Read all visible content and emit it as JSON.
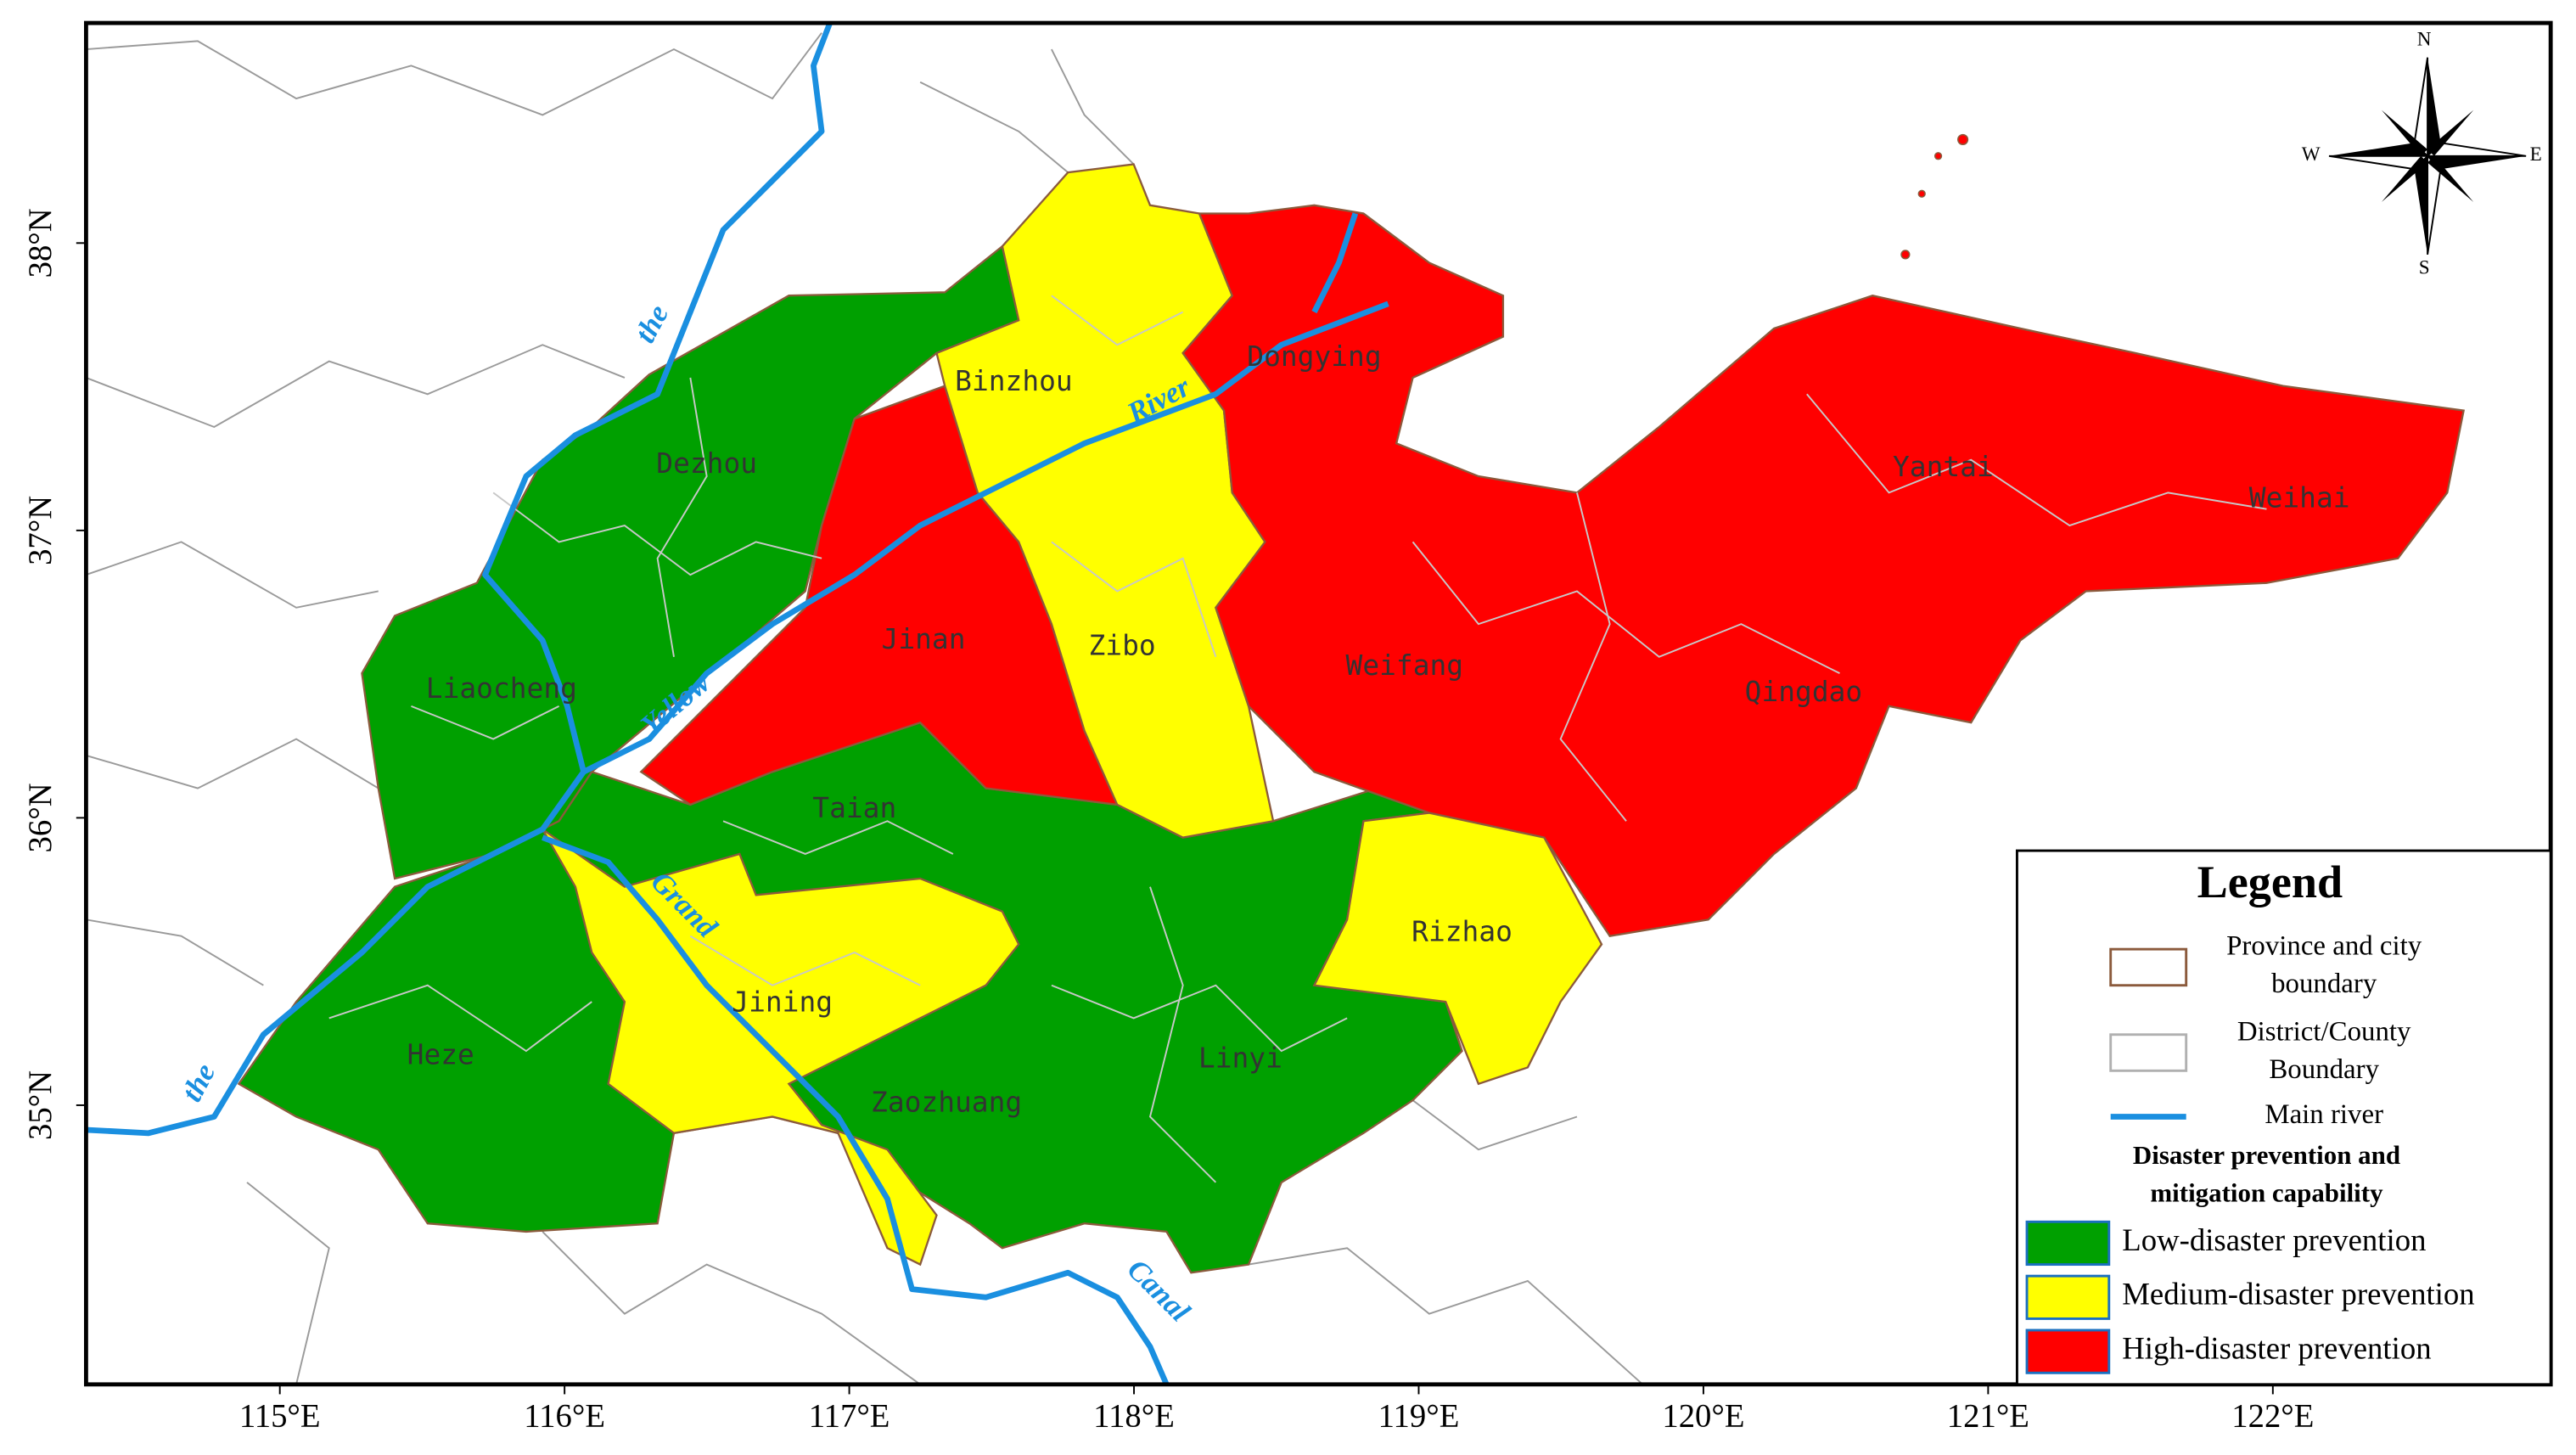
{
  "map": {
    "lat_labels": [
      "38°N",
      "37°N",
      "36°N",
      "35°N"
    ],
    "lon_labels": [
      "115°E",
      "116°E",
      "117°E",
      "118°E",
      "119°E",
      "120°E",
      "121°E",
      "122°E"
    ],
    "cities": [
      "Binzhou",
      "Dongying",
      "Dezhou",
      "Yantai",
      "Weihai",
      "Jinan",
      "Zibo",
      "Weifang",
      "Qingdao",
      "Liaocheng",
      "Taian",
      "Rizhao",
      "Jining",
      "Heze",
      "Linyi",
      "Zaozhuang"
    ],
    "river_labels": [
      "the",
      "River",
      "Yellow",
      "the",
      "Grand",
      "Canal"
    ],
    "compass": [
      "N",
      "E",
      "S",
      "W"
    ]
  },
  "legend": {
    "title": "Legend",
    "items": [
      {
        "lines": [
          "Province and city",
          "boundary"
        ]
      },
      {
        "lines": [
          "District/County",
          "Boundary"
        ]
      },
      {
        "lines": [
          "Main river"
        ]
      }
    ],
    "section_title": [
      "Disaster prevention and",
      "mitigation capability"
    ],
    "classes": [
      "Low-disaster prevention",
      "Medium-disaster prevention",
      "High-disaster prevention"
    ]
  }
}
